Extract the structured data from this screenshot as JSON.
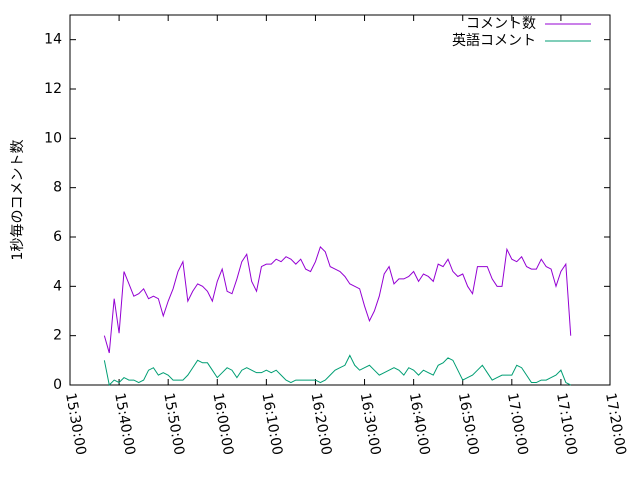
{
  "chart_data": {
    "type": "line",
    "y_label": "1秒毎のコメント数",
    "x": [
      "15:37:00",
      "15:38:00",
      "15:39:00",
      "15:40:00",
      "15:41:00",
      "15:42:00",
      "15:43:00",
      "15:44:00",
      "15:45:00",
      "15:46:00",
      "15:47:00",
      "15:48:00",
      "15:49:00",
      "15:50:00",
      "15:51:00",
      "15:52:00",
      "15:53:00",
      "15:54:00",
      "15:55:00",
      "15:56:00",
      "15:57:00",
      "15:58:00",
      "15:59:00",
      "16:00:00",
      "16:01:00",
      "16:02:00",
      "16:03:00",
      "16:04:00",
      "16:05:00",
      "16:06:00",
      "16:07:00",
      "16:08:00",
      "16:09:00",
      "16:10:00",
      "16:11:00",
      "16:12:00",
      "16:13:00",
      "16:14:00",
      "16:15:00",
      "16:16:00",
      "16:17:00",
      "16:18:00",
      "16:19:00",
      "16:20:00",
      "16:21:00",
      "16:22:00",
      "16:23:00",
      "16:24:00",
      "16:25:00",
      "16:26:00",
      "16:27:00",
      "16:28:00",
      "16:29:00",
      "16:30:00",
      "16:31:00",
      "16:32:00",
      "16:33:00",
      "16:34:00",
      "16:35:00",
      "16:36:00",
      "16:37:00",
      "16:38:00",
      "16:39:00",
      "16:40:00",
      "16:41:00",
      "16:42:00",
      "16:43:00",
      "16:44:00",
      "16:45:00",
      "16:46:00",
      "16:47:00",
      "16:48:00",
      "16:49:00",
      "16:50:00",
      "16:51:00",
      "16:52:00",
      "16:53:00",
      "16:54:00",
      "16:55:00",
      "16:56:00",
      "16:57:00",
      "16:58:00",
      "16:59:00",
      "17:00:00",
      "17:01:00",
      "17:02:00",
      "17:03:00",
      "17:04:00",
      "17:05:00",
      "17:06:00",
      "17:07:00",
      "17:08:00",
      "17:09:00",
      "17:10:00",
      "17:11:00",
      "17:12:00"
    ],
    "series": [
      {
        "name": "コメント数",
        "color": "#9400d3",
        "values": [
          2.0,
          1.3,
          3.5,
          2.1,
          4.6,
          4.1,
          3.6,
          3.7,
          3.9,
          3.5,
          3.6,
          3.5,
          2.8,
          3.4,
          3.9,
          4.6,
          5.0,
          3.4,
          3.8,
          4.1,
          4.0,
          3.8,
          3.4,
          4.2,
          4.7,
          3.8,
          3.7,
          4.3,
          5.0,
          5.3,
          4.2,
          3.8,
          4.8,
          4.9,
          4.9,
          5.1,
          5.0,
          5.2,
          5.1,
          4.9,
          5.1,
          4.7,
          4.6,
          5.0,
          5.6,
          5.4,
          4.8,
          4.7,
          4.6,
          4.4,
          4.1,
          4.0,
          3.9,
          3.2,
          2.6,
          3.0,
          3.6,
          4.5,
          4.8,
          4.1,
          4.3,
          4.3,
          4.4,
          4.6,
          4.2,
          4.5,
          4.4,
          4.2,
          4.9,
          4.8,
          5.1,
          4.6,
          4.4,
          4.5,
          4.0,
          3.7,
          4.8,
          4.8,
          4.8,
          4.3,
          4.0,
          4.0,
          5.5,
          5.1,
          5.0,
          5.2,
          4.8,
          4.7,
          4.7,
          5.1,
          4.8,
          4.7,
          4.0,
          4.6,
          4.9,
          2.0
        ]
      },
      {
        "name": "英語コメント",
        "color": "#009e73",
        "values": [
          1.0,
          0.0,
          0.2,
          0.1,
          0.3,
          0.2,
          0.2,
          0.1,
          0.2,
          0.6,
          0.7,
          0.4,
          0.5,
          0.4,
          0.2,
          0.2,
          0.2,
          0.4,
          0.7,
          1.0,
          0.9,
          0.9,
          0.6,
          0.3,
          0.5,
          0.7,
          0.6,
          0.3,
          0.6,
          0.7,
          0.6,
          0.5,
          0.5,
          0.6,
          0.5,
          0.6,
          0.4,
          0.2,
          0.1,
          0.2,
          0.2,
          0.2,
          0.2,
          0.2,
          0.1,
          0.2,
          0.4,
          0.6,
          0.7,
          0.8,
          1.2,
          0.8,
          0.6,
          0.7,
          0.8,
          0.6,
          0.4,
          0.5,
          0.6,
          0.7,
          0.6,
          0.4,
          0.7,
          0.6,
          0.4,
          0.6,
          0.5,
          0.4,
          0.8,
          0.9,
          1.1,
          1.0,
          0.6,
          0.2,
          0.3,
          0.4,
          0.6,
          0.8,
          0.5,
          0.2,
          0.3,
          0.4,
          0.4,
          0.4,
          0.8,
          0.7,
          0.4,
          0.1,
          0.1,
          0.2,
          0.2,
          0.3,
          0.4,
          0.6,
          0.1,
          0.0
        ]
      }
    ],
    "xlim": [
      "15:30:00",
      "17:20:00"
    ],
    "xticks": [
      "15:30:00",
      "15:40:00",
      "15:50:00",
      "16:00:00",
      "16:10:00",
      "16:20:00",
      "16:30:00",
      "16:40:00",
      "16:50:00",
      "17:00:00",
      "17:10:00",
      "17:20:00"
    ],
    "ylim": [
      0,
      15
    ],
    "yticks": [
      0,
      2,
      4,
      6,
      8,
      10,
      12,
      14
    ],
    "legend": "top-right"
  }
}
